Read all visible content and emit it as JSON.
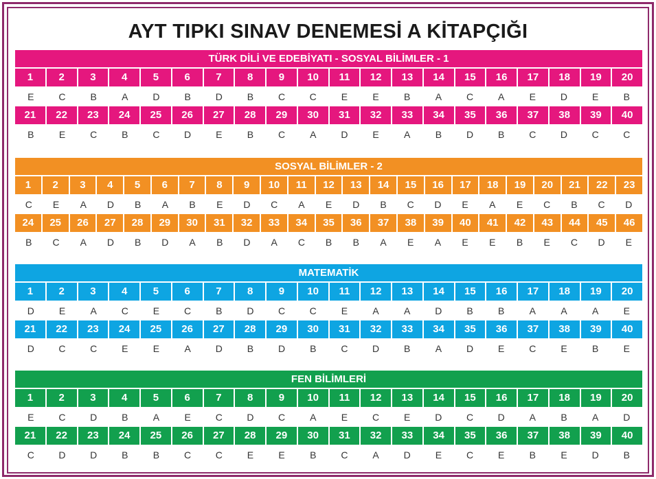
{
  "title": "AYT TIPKI SINAV DENEMESİ A KİTAPÇIĞI",
  "sections": [
    {
      "title": "TÜRK DİLİ VE EDEBİYATI - SOSYAL BİLİMLER - 1",
      "color": "#e5177e",
      "rows": [
        {
          "numbers": [
            1,
            2,
            3,
            4,
            5,
            6,
            7,
            8,
            9,
            10,
            11,
            12,
            13,
            14,
            15,
            16,
            17,
            18,
            19,
            20
          ],
          "answers": [
            "E",
            "C",
            "B",
            "A",
            "D",
            "B",
            "D",
            "B",
            "C",
            "C",
            "E",
            "E",
            "B",
            "A",
            "C",
            "A",
            "E",
            "D",
            "E",
            "B"
          ]
        },
        {
          "numbers": [
            21,
            22,
            23,
            24,
            25,
            26,
            27,
            28,
            29,
            30,
            31,
            32,
            33,
            34,
            35,
            36,
            37,
            38,
            39,
            40
          ],
          "answers": [
            "B",
            "E",
            "C",
            "B",
            "C",
            "D",
            "E",
            "B",
            "C",
            "A",
            "D",
            "E",
            "A",
            "B",
            "D",
            "B",
            "C",
            "D",
            "C",
            "C"
          ]
        }
      ]
    },
    {
      "title": "SOSYAL BİLİMLER - 2",
      "color": "#f29023",
      "rows": [
        {
          "numbers": [
            1,
            2,
            3,
            4,
            5,
            6,
            7,
            8,
            9,
            10,
            11,
            12,
            13,
            14,
            15,
            16,
            17,
            18,
            19,
            20,
            21,
            22,
            23
          ],
          "answers": [
            "C",
            "E",
            "A",
            "D",
            "B",
            "A",
            "B",
            "E",
            "D",
            "C",
            "A",
            "E",
            "D",
            "B",
            "C",
            "D",
            "E",
            "A",
            "E",
            "C",
            "B",
            "C",
            "D"
          ]
        },
        {
          "numbers": [
            24,
            25,
            26,
            27,
            28,
            29,
            30,
            31,
            32,
            33,
            34,
            35,
            36,
            37,
            38,
            39,
            40,
            41,
            42,
            43,
            44,
            45,
            46
          ],
          "answers": [
            "B",
            "C",
            "A",
            "D",
            "B",
            "D",
            "A",
            "B",
            "D",
            "A",
            "C",
            "B",
            "B",
            "A",
            "E",
            "A",
            "E",
            "E",
            "B",
            "E",
            "C",
            "D",
            "E"
          ]
        }
      ]
    },
    {
      "title": "MATEMATİK",
      "color": "#0ea5e2",
      "rows": [
        {
          "numbers": [
            1,
            2,
            3,
            4,
            5,
            6,
            7,
            8,
            9,
            10,
            11,
            12,
            13,
            14,
            15,
            16,
            17,
            18,
            19,
            20
          ],
          "answers": [
            "D",
            "E",
            "A",
            "C",
            "E",
            "C",
            "B",
            "D",
            "C",
            "C",
            "E",
            "A",
            "A",
            "D",
            "B",
            "B",
            "A",
            "A",
            "A",
            "E"
          ]
        },
        {
          "numbers": [
            21,
            22,
            23,
            24,
            25,
            26,
            27,
            28,
            29,
            30,
            31,
            32,
            33,
            34,
            35,
            36,
            37,
            38,
            39,
            40
          ],
          "answers": [
            "D",
            "C",
            "C",
            "E",
            "E",
            "A",
            "D",
            "B",
            "D",
            "B",
            "C",
            "D",
            "B",
            "A",
            "D",
            "E",
            "C",
            "E",
            "B",
            "E"
          ]
        }
      ]
    },
    {
      "title": "FEN BİLİMLERİ",
      "color": "#12a04e",
      "rows": [
        {
          "numbers": [
            1,
            2,
            3,
            4,
            5,
            6,
            7,
            8,
            9,
            10,
            11,
            12,
            13,
            14,
            15,
            16,
            17,
            18,
            19,
            20
          ],
          "answers": [
            "E",
            "C",
            "D",
            "B",
            "A",
            "E",
            "C",
            "D",
            "C",
            "A",
            "E",
            "C",
            "E",
            "D",
            "C",
            "D",
            "A",
            "B",
            "A",
            "D"
          ]
        },
        {
          "numbers": [
            21,
            22,
            23,
            24,
            25,
            26,
            27,
            28,
            29,
            30,
            31,
            32,
            33,
            34,
            35,
            36,
            37,
            38,
            39,
            40
          ],
          "answers": [
            "C",
            "D",
            "D",
            "B",
            "B",
            "C",
            "C",
            "E",
            "E",
            "B",
            "C",
            "A",
            "D",
            "E",
            "C",
            "E",
            "B",
            "E",
            "D",
            "B"
          ]
        }
      ]
    }
  ]
}
